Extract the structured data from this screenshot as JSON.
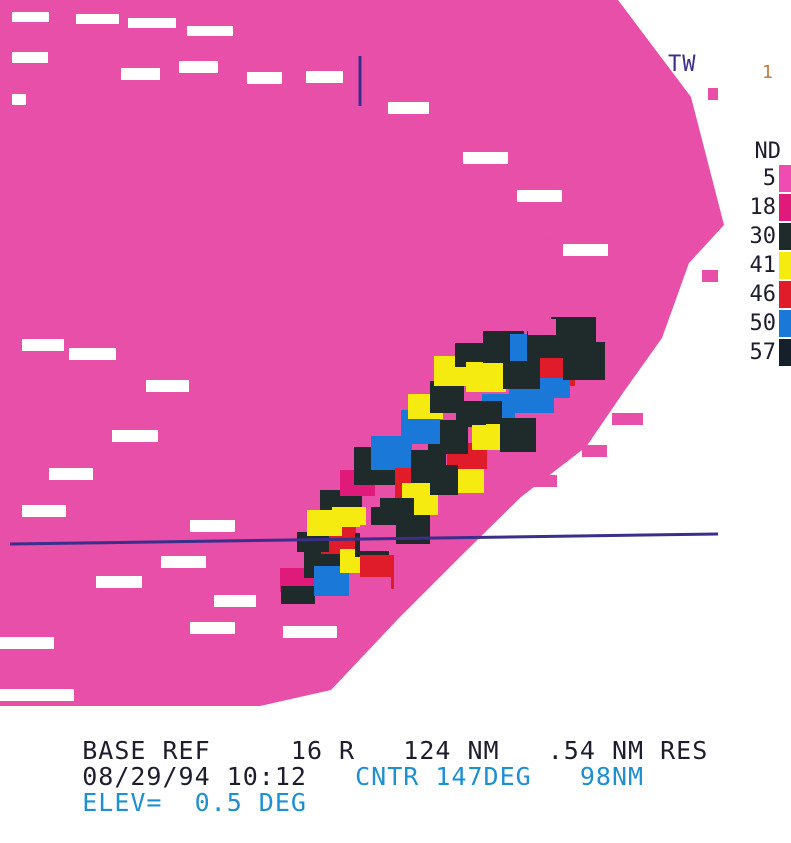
{
  "header": {
    "radar_id": "TW",
    "corner_mark": "1"
  },
  "legend": {
    "title": "ND",
    "levels": [
      {
        "value": "5",
        "color": "#f04bb2"
      },
      {
        "value": "18",
        "color": "#e01a7a"
      },
      {
        "value": "30",
        "color": "#1f2a2a"
      },
      {
        "value": "41",
        "color": "#f5eb10"
      },
      {
        "value": "46",
        "color": "#e11c2a"
      },
      {
        "value": "50",
        "color": "#1a78d8"
      },
      {
        "value": "57",
        "color": "#16202a"
      }
    ]
  },
  "status": {
    "product": "BASE REF",
    "product_number": "16 R",
    "range": "124 NM",
    "resolution": ".54 NM RES",
    "date": "08/29/94",
    "time": "10:12",
    "center": "CNTR 147DEG",
    "center_range": "98NM",
    "elevation_label": "ELEV=",
    "elevation_value": "0.5 DEG"
  },
  "colors": {
    "base_echo": "#e84fa8",
    "storm_core": "#1f2a2a",
    "line_color": "#3a2f8a"
  }
}
